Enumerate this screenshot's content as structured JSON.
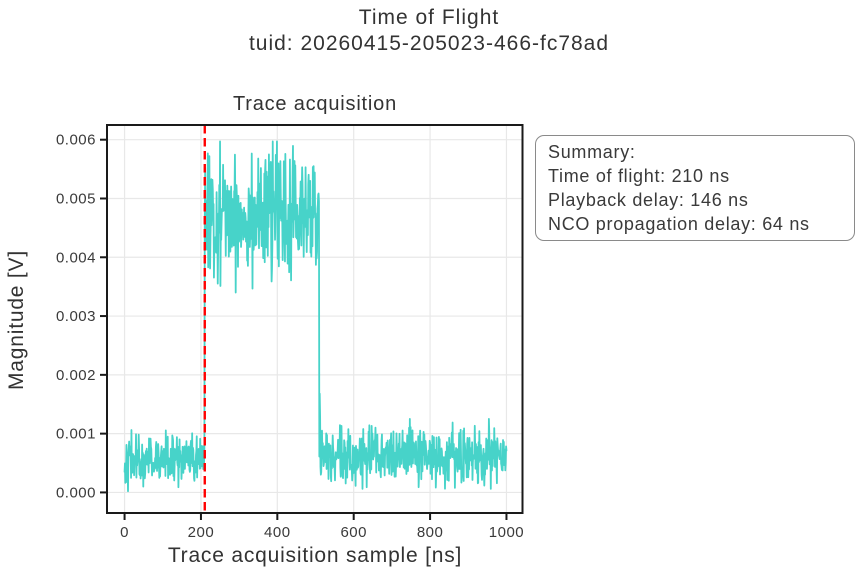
{
  "figure": {
    "title": "Time of Flight",
    "subtitle": "tuid: 20260415-205023-466-fc78ad"
  },
  "summary_box": {
    "lines": [
      "Summary:",
      "Time of flight: 210 ns",
      "Playback delay: 146 ns",
      "NCO propagation delay: 64 ns"
    ]
  },
  "measurements": {
    "time_of_flight_ns": 210,
    "playback_delay_ns": 146,
    "nco_propagation_delay_ns": 64
  },
  "chart_data": {
    "type": "line",
    "title": "Trace acquisition",
    "xlabel": "Trace acquisition sample [ns]",
    "ylabel": "Magnitude [V]",
    "xlim": [
      -46,
      1042
    ],
    "ylim": [
      -0.00035,
      0.00625
    ],
    "xticks": [
      0,
      200,
      400,
      600,
      800,
      1000
    ],
    "xtick_labels": [
      "0",
      "200",
      "400",
      "600",
      "800",
      "1000"
    ],
    "yticks": [
      0.0,
      0.001,
      0.002,
      0.003,
      0.004,
      0.005,
      0.006
    ],
    "ytick_labels": [
      "0.000",
      "0.001",
      "0.002",
      "0.003",
      "0.004",
      "0.005",
      "0.006"
    ],
    "grid": true,
    "grid_color": "#e8e8e8",
    "spine_color": "#1a1a1a",
    "legend": "none",
    "series": [
      {
        "name": "acquired-trace-magnitude",
        "color": "#47d3c9",
        "sample_step_ns": 1,
        "noise_seed": 42,
        "segments": [
          {
            "x_start": 0,
            "x_end": 210,
            "mean": 0.00055,
            "sigma": 0.00021,
            "min": 2e-05,
            "max": 0.00112
          },
          {
            "x_start": 210,
            "x_end": 510,
            "mean": 0.00473,
            "sigma": 0.00052,
            "min": 0.0034,
            "max": 0.00597
          },
          {
            "x_start": 510,
            "x_end": 1001,
            "mean": 0.0006,
            "sigma": 0.00024,
            "min": 6e-05,
            "max": 0.00125
          }
        ],
        "spikes": [
          {
            "x": 511,
            "value": 0.00168
          },
          {
            "x": 512,
            "value": 0.0013
          }
        ],
        "pulse_summary": {
          "pulse_start_ns": 210,
          "pulse_end_ns": 510,
          "pulse_mean_V": 0.00473,
          "baseline_mean_V": 0.00057
        }
      }
    ],
    "annotations": [
      {
        "type": "vline",
        "x": 210,
        "color": "#ff0000",
        "style": "dashed",
        "name": "time-of-flight-marker"
      }
    ]
  }
}
